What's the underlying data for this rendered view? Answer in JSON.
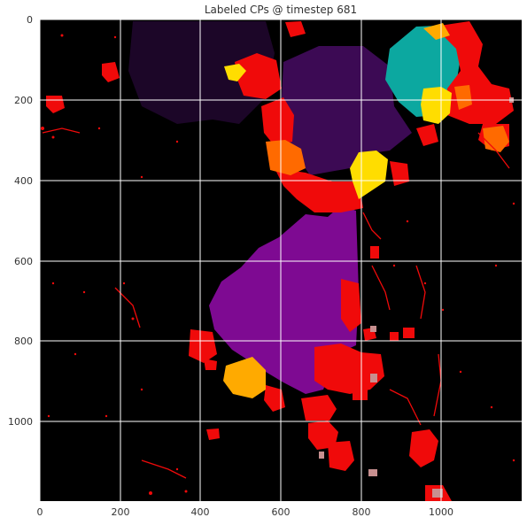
{
  "title": "Labeled CPs @ timestep 681",
  "axes": {
    "x_ticks": [
      "0",
      "200",
      "400",
      "600",
      "800",
      "1000"
    ],
    "y_ticks": [
      "0",
      "200",
      "400",
      "600",
      "800",
      "1000"
    ],
    "grid": true
  },
  "colors": {
    "background": "#000000",
    "grid": "#ffffff",
    "dark_violet": "#1c0628",
    "deep_purple": "#3c0a54",
    "purple": "#7e0a92",
    "teal": "#0ca8a0",
    "yellow": "#ffdd00",
    "amber": "#ffaa00",
    "orange": "#ff6a00",
    "red": "#f00a0a",
    "pink": "#c89090"
  }
}
